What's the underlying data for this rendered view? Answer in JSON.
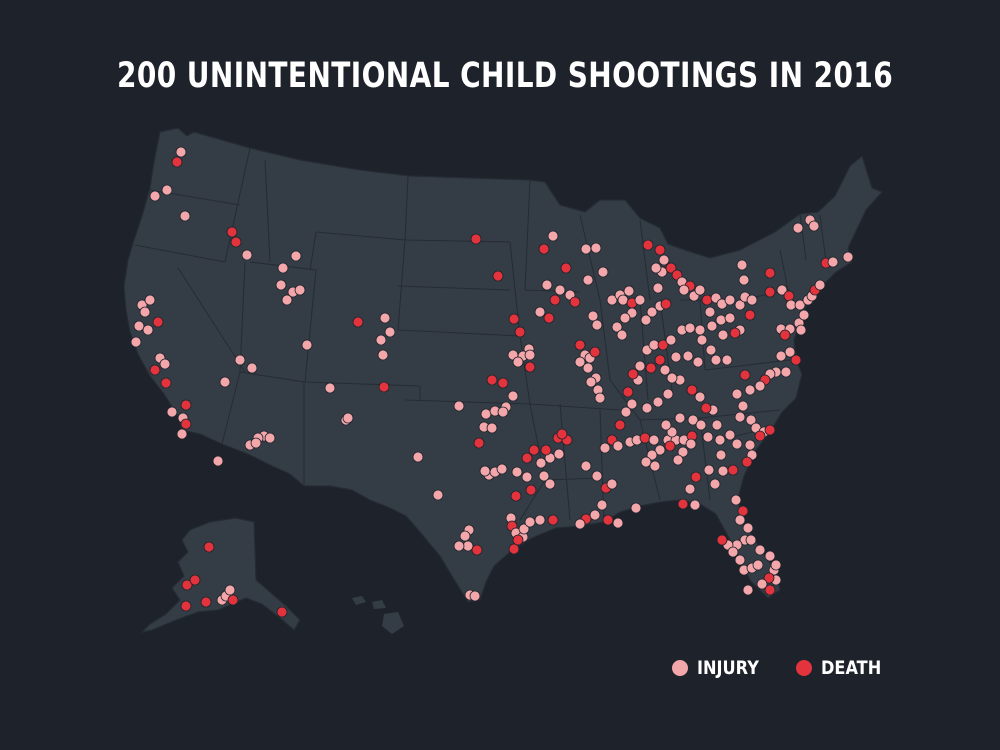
{
  "title": "200 UNINTENTIONAL CHILD SHOOTINGS IN 2016",
  "colors": {
    "background": "#1e232b",
    "land": "#343d46",
    "border": "#262c34",
    "injury": "#f4a7aa",
    "death": "#e3333d"
  },
  "legend": [
    {
      "label": "INJURY",
      "color": "#f4a7aa"
    },
    {
      "label": "DEATH",
      "color": "#e3333d"
    }
  ]
}
